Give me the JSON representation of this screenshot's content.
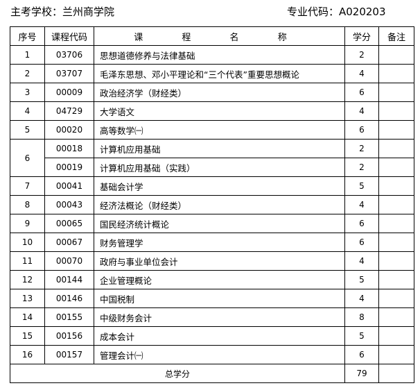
{
  "header": {
    "school": "主考学校：兰州商学院",
    "major_code": "专业代码：A020203"
  },
  "columns": [
    "序号",
    "课程代码",
    "课  程  名  称",
    "学分",
    "备注"
  ],
  "rows": [
    {
      "no": "1",
      "code": "03706",
      "name": "思想道德修养与法律基础",
      "credit": "2"
    },
    {
      "no": "2",
      "code": "03707",
      "name": "毛泽东思想、邓小平理论和“三个代表”重要思想概论",
      "credit": "4"
    },
    {
      "no": "3",
      "code": "00009",
      "name": "政治经济学（财经类）",
      "credit": "6"
    },
    {
      "no": "4",
      "code": "04729",
      "name": "大学语文",
      "credit": "4"
    },
    {
      "no": "5",
      "code": "00020",
      "name": "高等数学㈠",
      "credit": "6"
    },
    {
      "no": "6",
      "code": "00018",
      "name": "计算机应用基础",
      "credit": "2",
      "span": 2
    },
    {
      "no": "",
      "code": "00019",
      "name": "计算机应用基础（实践）",
      "credit": "2",
      "merged": true
    },
    {
      "no": "7",
      "code": "00041",
      "name": "基础会计学",
      "credit": "5"
    },
    {
      "no": "8",
      "code": "00043",
      "name": "经济法概论（财经类）",
      "credit": "4"
    },
    {
      "no": "9",
      "code": "00065",
      "name": "国民经济统计概论",
      "credit": "6"
    },
    {
      "no": "10",
      "code": "00067",
      "name": "财务管理学",
      "credit": "6"
    },
    {
      "no": "11",
      "code": "00070",
      "name": "政府与事业单位会计",
      "credit": "4"
    },
    {
      "no": "12",
      "code": "00144",
      "name": "企业管理概论",
      "credit": "5"
    },
    {
      "no": "13",
      "code": "00146",
      "name": "中国税制",
      "credit": "4"
    },
    {
      "no": "14",
      "code": "00155",
      "name": "中级财务会计",
      "credit": "8"
    },
    {
      "no": "15",
      "code": "00156",
      "name": "成本会计",
      "credit": "5"
    },
    {
      "no": "16",
      "code": "00157",
      "name": "管理会计㈠",
      "credit": "6"
    }
  ],
  "total": {
    "label": "总学分",
    "credit": "79"
  }
}
